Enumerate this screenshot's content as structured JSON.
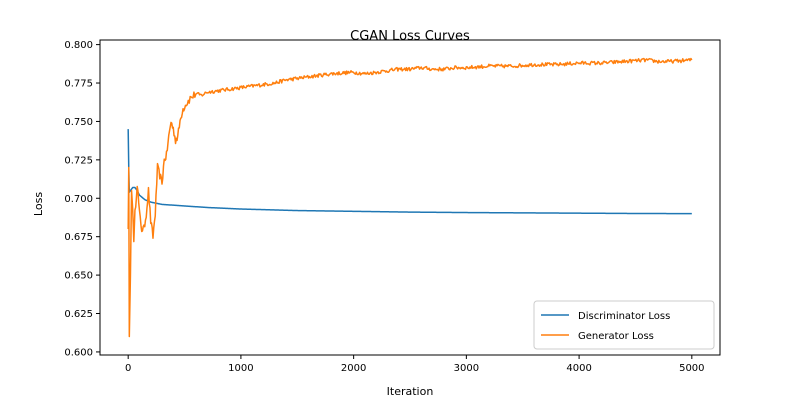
{
  "chart_data": {
    "type": "line",
    "title": "CGAN Loss Curves",
    "xlabel": "Iteration",
    "ylabel": "Loss",
    "xlim": [
      -250,
      5250
    ],
    "ylim": [
      0.598,
      0.803
    ],
    "xticks": [
      0,
      1000,
      2000,
      3000,
      4000,
      5000
    ],
    "yticks": [
      0.6,
      0.625,
      0.65,
      0.675,
      0.7,
      0.725,
      0.75,
      0.775,
      0.8
    ],
    "ytick_labels": [
      "0.600",
      "0.625",
      "0.650",
      "0.675",
      "0.700",
      "0.725",
      "0.750",
      "0.775",
      "0.800"
    ],
    "grid": false,
    "legend_position": "lower-right",
    "series": [
      {
        "name": "Discriminator Loss",
        "color": "#1f77b4",
        "noise": 0,
        "x": [
          0,
          5,
          10,
          20,
          40,
          60,
          80,
          100,
          150,
          200,
          300,
          400,
          500,
          700,
          1000,
          1500,
          2000,
          2500,
          3000,
          3500,
          4000,
          4500,
          5000
        ],
        "y": [
          0.745,
          0.72,
          0.704,
          0.705,
          0.707,
          0.707,
          0.705,
          0.702,
          0.699,
          0.6975,
          0.696,
          0.6955,
          0.695,
          0.694,
          0.693,
          0.692,
          0.6915,
          0.691,
          0.6907,
          0.6905,
          0.6903,
          0.6901,
          0.69
        ]
      },
      {
        "name": "Generator Loss",
        "color": "#ff7f0e",
        "noise": 0.0012,
        "x": [
          0,
          5,
          10,
          20,
          30,
          40,
          50,
          60,
          80,
          100,
          120,
          140,
          160,
          180,
          200,
          220,
          240,
          260,
          280,
          300,
          320,
          340,
          360,
          380,
          400,
          420,
          440,
          460,
          480,
          500,
          550,
          600,
          650,
          700,
          800,
          900,
          1000,
          1100,
          1200,
          1300,
          1400,
          1500,
          1600,
          1700,
          1800,
          1900,
          2000,
          2100,
          2200,
          2300,
          2400,
          2500,
          2600,
          2700,
          2800,
          2900,
          3000,
          3200,
          3400,
          3600,
          3800,
          4000,
          4200,
          4400,
          4600,
          4700,
          4800,
          5000
        ],
        "y": [
          0.68,
          0.72,
          0.61,
          0.65,
          0.705,
          0.695,
          0.67,
          0.69,
          0.71,
          0.69,
          0.68,
          0.68,
          0.69,
          0.705,
          0.685,
          0.675,
          0.69,
          0.72,
          0.715,
          0.71,
          0.725,
          0.728,
          0.74,
          0.75,
          0.745,
          0.738,
          0.74,
          0.75,
          0.757,
          0.76,
          0.765,
          0.768,
          0.767,
          0.769,
          0.77,
          0.771,
          0.772,
          0.773,
          0.774,
          0.775,
          0.777,
          0.778,
          0.779,
          0.78,
          0.781,
          0.7815,
          0.782,
          0.781,
          0.782,
          0.783,
          0.784,
          0.784,
          0.785,
          0.784,
          0.784,
          0.785,
          0.785,
          0.786,
          0.786,
          0.787,
          0.787,
          0.788,
          0.788,
          0.789,
          0.79,
          0.789,
          0.789,
          0.79
        ]
      }
    ]
  }
}
